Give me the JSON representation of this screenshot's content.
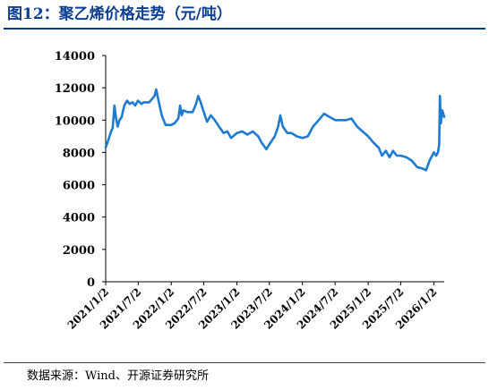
{
  "title": "图12：聚乙烯价格走势（元/吨）",
  "source": "数据来源：Wind、开源证券研究所",
  "colors": {
    "title": "#0b3d91",
    "line": "#1f7bd0",
    "axis": "#000000"
  },
  "chart_data": {
    "type": "line",
    "title": "",
    "xlabel": "",
    "ylabel": "",
    "ylim": [
      0,
      14000
    ],
    "y_ticks": [
      0,
      2000,
      4000,
      6000,
      8000,
      10000,
      12000,
      14000
    ],
    "x_ticks": [
      "2021/1/2",
      "2021/7/2",
      "2022/1/2",
      "2022/7/2",
      "2023/1/2",
      "2023/7/2",
      "2024/1/2",
      "2024/7/2",
      "2025/1/2",
      "2025/7/2",
      "2026/1/2"
    ],
    "x_range": [
      "2021/1/2",
      "2026/3/1"
    ],
    "grid": false,
    "legend": "none",
    "series": [
      {
        "name": "",
        "points": [
          [
            "2021/1/2",
            8300
          ],
          [
            "2021/1/15",
            8700
          ],
          [
            "2021/2/1",
            9300
          ],
          [
            "2021/2/10",
            9500
          ],
          [
            "2021/2/20",
            10900
          ],
          [
            "2021/3/1",
            10100
          ],
          [
            "2021/3/10",
            9600
          ],
          [
            "2021/3/20",
            10000
          ],
          [
            "2021/4/1",
            10200
          ],
          [
            "2021/4/15",
            10900
          ],
          [
            "2021/5/1",
            11200
          ],
          [
            "2021/5/15",
            11000
          ],
          [
            "2021/6/1",
            11100
          ],
          [
            "2021/6/15",
            10900
          ],
          [
            "2021/7/1",
            11200
          ],
          [
            "2021/7/20",
            11000
          ],
          [
            "2021/8/1",
            11100
          ],
          [
            "2021/9/1",
            11100
          ],
          [
            "2021/10/1",
            11500
          ],
          [
            "2021/10/10",
            11900
          ],
          [
            "2021/10/25",
            11100
          ],
          [
            "2021/11/10",
            10300
          ],
          [
            "2021/12/1",
            9700
          ],
          [
            "2022/1/2",
            9700
          ],
          [
            "2022/1/20",
            9800
          ],
          [
            "2022/2/10",
            10100
          ],
          [
            "2022/2/20",
            10900
          ],
          [
            "2022/3/1",
            10300
          ],
          [
            "2022/3/10",
            10600
          ],
          [
            "2022/4/1",
            10500
          ],
          [
            "2022/5/1",
            10500
          ],
          [
            "2022/5/20",
            11000
          ],
          [
            "2022/6/1",
            11500
          ],
          [
            "2022/6/15",
            11100
          ],
          [
            "2022/7/2",
            10500
          ],
          [
            "2022/7/20",
            9900
          ],
          [
            "2022/8/10",
            10300
          ],
          [
            "2022/9/1",
            10000
          ],
          [
            "2022/10/1",
            9500
          ],
          [
            "2022/10/20",
            9200
          ],
          [
            "2022/11/10",
            9300
          ],
          [
            "2022/12/1",
            8900
          ],
          [
            "2023/1/2",
            9200
          ],
          [
            "2023/2/1",
            9300
          ],
          [
            "2023/3/1",
            9100
          ],
          [
            "2023/4/1",
            9300
          ],
          [
            "2023/5/1",
            9000
          ],
          [
            "2023/5/20",
            8600
          ],
          [
            "2023/6/15",
            8200
          ],
          [
            "2023/7/2",
            8500
          ],
          [
            "2023/8/1",
            9000
          ],
          [
            "2023/8/20",
            9600
          ],
          [
            "2023/9/1",
            10300
          ],
          [
            "2023/9/15",
            9600
          ],
          [
            "2023/10/10",
            9200
          ],
          [
            "2023/11/1",
            9200
          ],
          [
            "2023/12/1",
            9000
          ],
          [
            "2024/1/2",
            8900
          ],
          [
            "2024/2/1",
            9000
          ],
          [
            "2024/3/1",
            9600
          ],
          [
            "2024/4/1",
            10000
          ],
          [
            "2024/5/1",
            10400
          ],
          [
            "2024/6/1",
            10200
          ],
          [
            "2024/7/2",
            10000
          ],
          [
            "2024/8/1",
            10000
          ],
          [
            "2024/9/1",
            10000
          ],
          [
            "2024/10/1",
            10100
          ],
          [
            "2024/11/1",
            9600
          ],
          [
            "2024/12/1",
            9300
          ],
          [
            "2025/1/2",
            9000
          ],
          [
            "2025/2/1",
            8600
          ],
          [
            "2025/3/1",
            8300
          ],
          [
            "2025/3/20",
            7800
          ],
          [
            "2025/4/10",
            8100
          ],
          [
            "2025/5/1",
            7700
          ],
          [
            "2025/5/20",
            8100
          ],
          [
            "2025/6/10",
            7800
          ],
          [
            "2025/7/2",
            7800
          ],
          [
            "2025/8/1",
            7700
          ],
          [
            "2025/9/1",
            7500
          ],
          [
            "2025/10/1",
            7100
          ],
          [
            "2025/11/1",
            7000
          ],
          [
            "2025/11/20",
            6900
          ],
          [
            "2025/12/10",
            7500
          ],
          [
            "2026/1/2",
            8000
          ],
          [
            "2026/1/15",
            7800
          ],
          [
            "2026/1/25",
            8000
          ],
          [
            "2026/2/1",
            8500
          ],
          [
            "2026/2/5",
            11500
          ],
          [
            "2026/2/10",
            9800
          ],
          [
            "2026/2/18",
            10600
          ],
          [
            "2026/3/1",
            10200
          ]
        ]
      }
    ]
  }
}
